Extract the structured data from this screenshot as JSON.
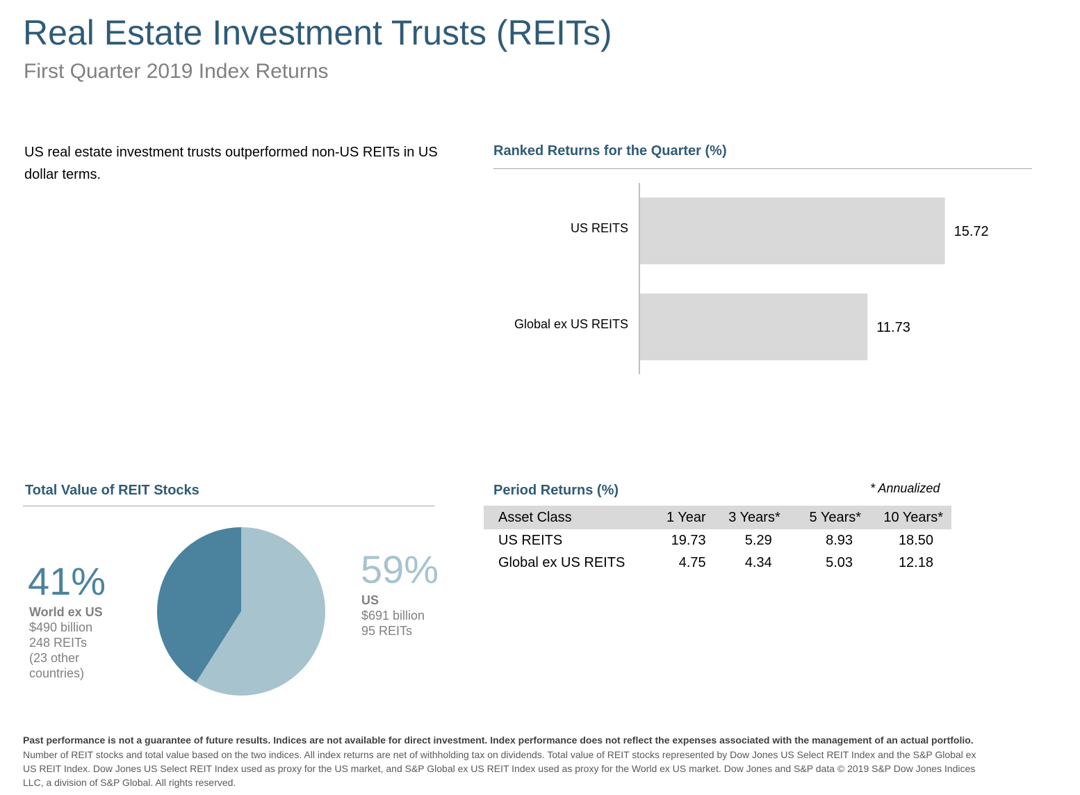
{
  "header": {
    "title": "Real Estate Investment Trusts (REITs)",
    "subtitle": "First Quarter 2019 Index Returns"
  },
  "intro_text": "US real estate investment trusts outperformed non-US REITs in US dollar terms.",
  "colors": {
    "title": "#2f5b78",
    "bar": "#d9d9d9",
    "pie_world_ex_us": "#4b839e",
    "pie_us": "#a7c3ce",
    "subtitle_gray": "#808080"
  },
  "ranked_returns": {
    "title": "Ranked Returns for the Quarter (%)"
  },
  "period_returns": {
    "title": "Period Returns (%)",
    "note": "* Annualized",
    "columns": [
      "Asset Class",
      "1 Year",
      "3 Years*",
      "5 Years*",
      "10 Years*"
    ],
    "rows": [
      {
        "asset": "US REITS",
        "y1": "19.73",
        "y3": "5.29",
        "y5": "8.93",
        "y10": "18.50"
      },
      {
        "asset": "Global ex US REITS",
        "y1": "4.75",
        "y3": "4.34",
        "y5": "5.03",
        "y10": "12.18"
      }
    ]
  },
  "total_value": {
    "title": "Total Value of REIT Stocks",
    "world_ex_us": {
      "percent": "41%",
      "label": "World ex US",
      "value": "$490 billion",
      "count": "248 REITs",
      "note": "(23 other countries)"
    },
    "us": {
      "percent": "59%",
      "label": "US",
      "value": "$691 billion",
      "count": "95 REITs"
    }
  },
  "footer": {
    "disclaimer_bold": "Past performance is not a guarantee of future results. Indices are not available for direct investment. Index performance does not reflect the expenses associated with the management of an actual portfolio.",
    "disclaimer_text": "Number of REIT stocks and total value based on the two indices. All index returns are net of withholding tax on dividends. Total value of REIT stocks represented by Dow Jones US Select REIT Index and the S&P Global ex US REIT Index. Dow Jones US Select REIT Index used as proxy for the US market, and S&P Global ex US REIT Index used as proxy for the World ex US market. Dow Jones and S&P data © 2019 S&P Dow Jones Indices LLC, a division of S&P Global. All rights reserved."
  },
  "chart_data": [
    {
      "type": "bar",
      "orientation": "horizontal",
      "title": "Ranked Returns for the Quarter (%)",
      "categories": [
        "US REITS",
        "Global ex US REITS"
      ],
      "values": [
        15.72,
        11.73
      ],
      "value_labels": [
        "15.72",
        "11.73"
      ],
      "xlim": [
        0,
        20
      ]
    },
    {
      "type": "pie",
      "title": "Total Value of REIT Stocks",
      "labels": [
        "World ex US",
        "US"
      ],
      "values": [
        41,
        59
      ]
    }
  ]
}
